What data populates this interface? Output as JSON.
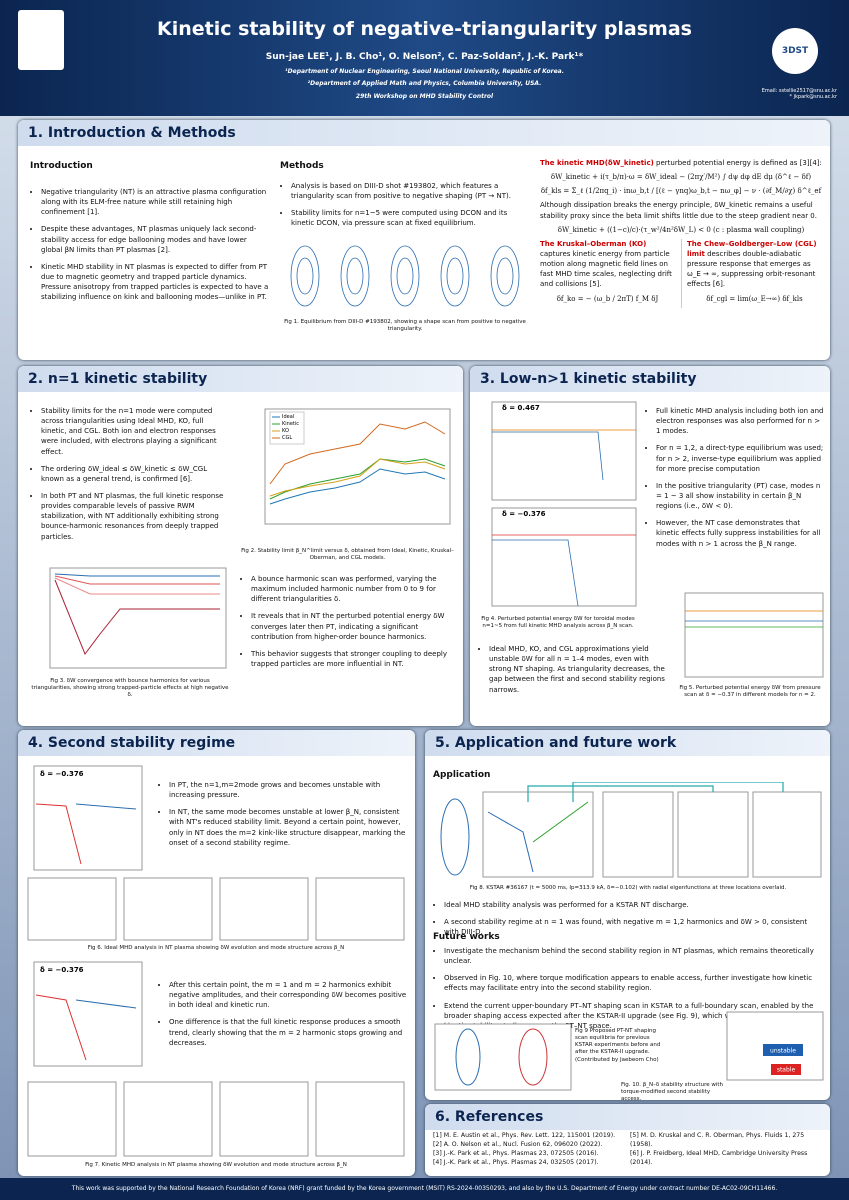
{
  "header": {
    "title": "Kinetic stability of negative-triangularity plasmas",
    "authors": "Sun-jae LEE¹, J. B. Cho¹, O. Nelson², C. Paz-Soldan², J.-K. Park¹*",
    "affiliations": [
      "¹Department of Nuclear Engineering, Seoul National University, Republic of Korea.",
      "²Department of Applied Math and Physics, Columbia University, USA."
    ],
    "workshop": "29th Workshop on MHD Stability Control",
    "emails": [
      "Email: sstellie2517@snu.ac.kr",
      "* jkpark@snu.ac.kr"
    ],
    "logo_right": "3DST"
  },
  "intro": {
    "heading": "1. Introduction & Methods",
    "intro_title": "Introduction",
    "intro_bullets": [
      "Negative triangularity (NT) is an attractive plasma configuration along with its ELM-free nature while still retaining high confinement [1].",
      "Despite these advantages, NT plasmas uniquely lack second-stability access for edge ballooning modes and have lower global βN limits than PT plasmas [2].",
      "Kinetic MHD stability in NT plasmas is expected to differ from PT due to magnetic geometry and trapped particle dynamics. Pressure anisotropy from trapped particles is expected to have a stabilizing influence on kink and ballooning modes—unlike in PT."
    ],
    "methods_title": "Methods",
    "methods_bullets": [
      "Analysis is based on DIII-D shot #193802, which features a triangularity scan from positive to negative shaping (PT → NT).",
      "Stability limits for n=1~5 were computed using DCON and its kinetic DCON, via pressure scan at fixed equilibrium."
    ],
    "fig1_caption": "Fig 1. Equilibrium from DIII-D #193802, showing a shape scan from positive to negative triangularity.",
    "kinetic_lead": "The kinetic MHD(δW_kinetic)",
    "kinetic_text": "perturbed potential energy is defined as [3][4]:",
    "eq1": "δW_kinetic + i(τ_b/π)·ω = δW_ideal − (2πχ′/M²) ∫ dψ dφ dE dμ (δ^ℓ − δf)",
    "eq2": "δf_kls = Σ_ℓ (1/2πq_i) · inω_b,t / [(ℓ − γnq)ω_b,t − nω_φ] − ν · (∂f_M/∂χ) δ^ℓ_ef",
    "dissipation": "Although dissipation breaks the energy principle, δW_kinetic remains a useful stability proxy since the beta limit shifts little due to the steep gradient near 0.",
    "eq3": "δW_kinetic + ((1−c)/c)·(τ_w²/4n²δW_L) < 0   (c : plasma wall coupling)",
    "ko_title": "The Kruskal–Oberman (KO)",
    "ko_text": "captures kinetic energy from particle motion along magnetic field lines on fast MHD time scales, neglecting drift and collisions [5].",
    "ko_eq": "δf_ko = − (ω_b / 2πT) f_M δJ",
    "cgl_title": "The Chew–Goldberger–Low (CGL) limit",
    "cgl_text": "describes double-adiabatic pressure response that emerges as ω_E → ∞, suppressing orbit-resonant effects [6].",
    "cgl_eq": "δf_cgl = lim(ω_E→∞) δf_kls"
  },
  "sec2": {
    "heading": "2. n=1 kinetic stability",
    "bullets_a": [
      "Stability limits for the n=1 mode were computed across triangularities using Ideal MHD, KO, full kinetic, and CGL. Both ion and electron responses were included, with electrons playing a significant effect.",
      "The ordering δW_ideal ≤ δW_kinetic ≤ δW_CGL known as a general trend, is confirmed [6].",
      "In both PT and NT plasmas, the full kinetic response provides comparable levels of passive RWM stabilization, with NT additionally exhibiting strong bounce-harmonic resonances from deeply trapped particles."
    ],
    "fig2_caption": "Fig 2. Stability limit β_N^limit versus δ, obtained from Ideal, Kinetic, Kruskal–Oberman, and CGL models.",
    "fig2_legend": [
      "Ideal",
      "Kinetic",
      "KO",
      "CGL"
    ],
    "fig3_caption": "Fig 3. δW convergence with bounce harmonics for various triangularities, showing strong trapped-particle effects at high negative δ.",
    "bullets_b": [
      "A bounce harmonic scan was performed, varying the maximum included harmonic number from 0 to 9 for different triangularities δ.",
      "It reveals that in NT the perturbed potential energy δW converges later then PT, indicating a significant contribution from higher-order bounce harmonics.",
      "This behavior suggests that stronger coupling to deeply trapped particles are more influential in NT."
    ]
  },
  "sec3": {
    "heading": "3. Low-n>1 kinetic stability",
    "panel_a": "δ = 0.467",
    "panel_b": "δ = −0.376",
    "fig4_caption": "Fig 4. Perturbed potential energy δW for toroidal modes n=1~5 from full kinetic MHD analysis across β_N scan.",
    "bullets_a": [
      "Full kinetic MHD analysis including both ion and electron responses was also performed for n > 1 modes.",
      "For n = 1,2, a direct-type equilibrium was used; for n > 2, inverse-type equilibrium was applied for more precise computation",
      "In the positive triangularity (PT) case, modes n = 1 ~ 3 all show instability in certain β_N regions (i.e., δW < 0).",
      "However, the NT case demonstrates that kinetic effects fully suppress instabilities for all modes with n > 1 across the β_N range."
    ],
    "bullets_b": [
      "Ideal MHD, KO, and CGL approximations yield unstable δW for all n = 1–4 modes, even with strong NT shaping. As triangularity decreases, the gap between the first and second stability regions narrows."
    ],
    "fig5_caption": "Fig 5. Perturbed potential energy δW from pressure scan at δ = −0.37 in different models for n = 2."
  },
  "sec4": {
    "heading": "4. Second stability regime",
    "panel_a": "δ = −0.376",
    "panel_b": "δ = −0.376",
    "bullets_a": [
      "In PT, the n=1,m=2mode grows and becomes unstable with increasing pressure.",
      "In NT, the same mode becomes unstable at lower β_N, consistent with NT's reduced stability limit. Beyond a certain point, however, only in NT does the m=2 kink-like structure disappear, marking the onset of a second stability regime."
    ],
    "fig6_caption": "Fig 6. Ideal MHD analysis in NT plasma showing δW evolution and mode structure across β_N",
    "bullets_b": [
      "After this certain point, the m = 1 and m = 2 harmonics exhibit negative amplitudes, and their corresponding δW becomes positive in both ideal and kinetic run.",
      "One difference is that the full kinetic response produces a smooth trend, clearly showing that the m = 2 harmonic stops growing and decreases."
    ],
    "fig7_caption": "Fig 7. Kinetic MHD analysis in NT plasma showing δW evolution and mode structure across β_N"
  },
  "sec5": {
    "heading": "5. Application and future work",
    "app_title": "Application",
    "fig8_caption": "Fig 8. KSTAR #36167 (t = 5000 ms, Ip=313.9 kA, δ=−0.102) with radial eigenfunctions at three locations overlaid.",
    "app_bullets": [
      "Ideal MHD stability analysis was performed for a KSTAR NT discharge.",
      "A second stability regime at n = 1 was found, with negative m = 1,2 harmonics and δW > 0, consistent with DIII-D."
    ],
    "future_title": "Future works",
    "future_bullets": [
      "Investigate the mechanism behind the second stability region in NT plasmas, which remains theoretically unclear.",
      "Observed in Fig. 10, where torque modification appears to enable access, further investigate how kinetic effects may facilitate entry into the second stability region.",
      "Extend the current upper-boundary PT–NT shaping scan in KSTAR to a full-boundary scan, enabled by the broader shaping access expected after the KSTAR-II upgrade (see Fig. 9), which would allow comprehensive kinetic stability studies across the PT–NT space."
    ],
    "fig9_caption": "Fig 9 Proposed PT-NT shaping scan equilibria for previous KSTAR experiments before and after the KSTAR-II upgrade. (Contributed by Jaebeom Cho)",
    "fig10_caption": "Fig. 10. β_N–δ stability structure with torque-modified second stability access.",
    "fig10_unstable": "unstable",
    "fig10_stable": "stable"
  },
  "refs": {
    "heading": "6. References",
    "left": [
      "[1] M. E. Austin et al., Phys. Rev. Lett. 122, 115001 (2019).",
      "[2] A. O. Nelson et al., Nucl. Fusion 62, 096020 (2022).",
      "[3] J.-K. Park et al., Phys. Plasmas 23, 072505 (2016).",
      "[4] J.-K. Park et al., Phys. Plasmas 24, 032505 (2017)."
    ],
    "right": [
      "[5] M. D. Kruskal and C. R. Oberman, Phys. Fluids 1, 275 (1958).",
      "[6] J. P. Freidberg, Ideal MHD, Cambridge University Press (2014)."
    ]
  },
  "footer": "This work was supported by the National Research Foundation of Korea (NRF) grant funded by the Korea government (MSIT) RS-2024-00350293, and also by the U.S. Department of Energy under contract number DE-AC02-09CH11466."
}
